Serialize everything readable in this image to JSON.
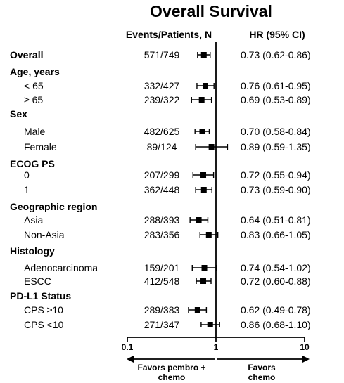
{
  "chart_data": {
    "type": "forest",
    "title": "Overall Survival",
    "columns": {
      "events": "Events/Patients, N",
      "hr": "HR (95%  CI)"
    },
    "x_axis": {
      "scale": "log",
      "ticks": [
        "0.1",
        "1",
        "10"
      ],
      "range": [
        0.1,
        10
      ],
      "reference": 1
    },
    "favors": {
      "left": [
        "Favors pembro +",
        "chemo"
      ],
      "right": [
        "Favors",
        "chemo"
      ]
    },
    "rows": [
      {
        "label": "Overall",
        "bold": true,
        "events": "571/749",
        "hr_text": "0.73 (0.62-0.86)",
        "hr": 0.73,
        "lo": 0.62,
        "hi": 0.86
      },
      {
        "label": "Age, years",
        "bold": true
      },
      {
        "label": "< 65",
        "events": "332/427",
        "hr_text": "0.76 (0.61-0.95)",
        "hr": 0.76,
        "lo": 0.61,
        "hi": 0.95
      },
      {
        "label": "≥ 65",
        "events": "239/322",
        "hr_text": "0.69 (0.53-0.89)",
        "hr": 0.69,
        "lo": 0.53,
        "hi": 0.89
      },
      {
        "label": "Sex",
        "bold": true
      },
      {
        "label": "Male",
        "events": "482/625",
        "hr_text": "0.70 (0.58-0.84)",
        "hr": 0.7,
        "lo": 0.58,
        "hi": 0.84
      },
      {
        "label": "Female",
        "events": "89/124",
        "hr_text": "0.89 (0.59-1.35)",
        "hr": 0.89,
        "lo": 0.59,
        "hi": 1.35
      },
      {
        "label": "ECOG PS",
        "bold": true
      },
      {
        "label": "0",
        "events": "207/299",
        "hr_text": "0.72 (0.55-0.94)",
        "hr": 0.72,
        "lo": 0.55,
        "hi": 0.94
      },
      {
        "label": "1",
        "events": "362/448",
        "hr_text": "0.73 (0.59-0.90)",
        "hr": 0.73,
        "lo": 0.59,
        "hi": 0.9
      },
      {
        "label": "Geographic region",
        "bold": true
      },
      {
        "label": "Asia",
        "events": "288/393",
        "hr_text": "0.64 (0.51-0.81)",
        "hr": 0.64,
        "lo": 0.51,
        "hi": 0.81
      },
      {
        "label": "Non-Asia",
        "events": "283/356",
        "hr_text": "0.83 (0.66-1.05)",
        "hr": 0.83,
        "lo": 0.66,
        "hi": 1.05
      },
      {
        "label": "Histology",
        "bold": true
      },
      {
        "label": "Adenocarcinoma",
        "events": "159/201",
        "hr_text": "0.74 (0.54-1.02)",
        "hr": 0.74,
        "lo": 0.54,
        "hi": 1.02
      },
      {
        "label": "ESCC",
        "events": "412/548",
        "hr_text": "0.72 (0.60-0.88)",
        "hr": 0.72,
        "lo": 0.6,
        "hi": 0.88
      },
      {
        "label": "PD-L1 Status",
        "bold": true
      },
      {
        "label": "CPS ≥10",
        "events": "289/383",
        "hr_text": "0.62 (0.49-0.78)",
        "hr": 0.62,
        "lo": 0.49,
        "hi": 0.78
      },
      {
        "label": "CPS <10",
        "events": "271/347",
        "hr_text": "0.86 (0.68-1.10)",
        "hr": 0.86,
        "lo": 0.68,
        "hi": 1.1
      }
    ]
  }
}
